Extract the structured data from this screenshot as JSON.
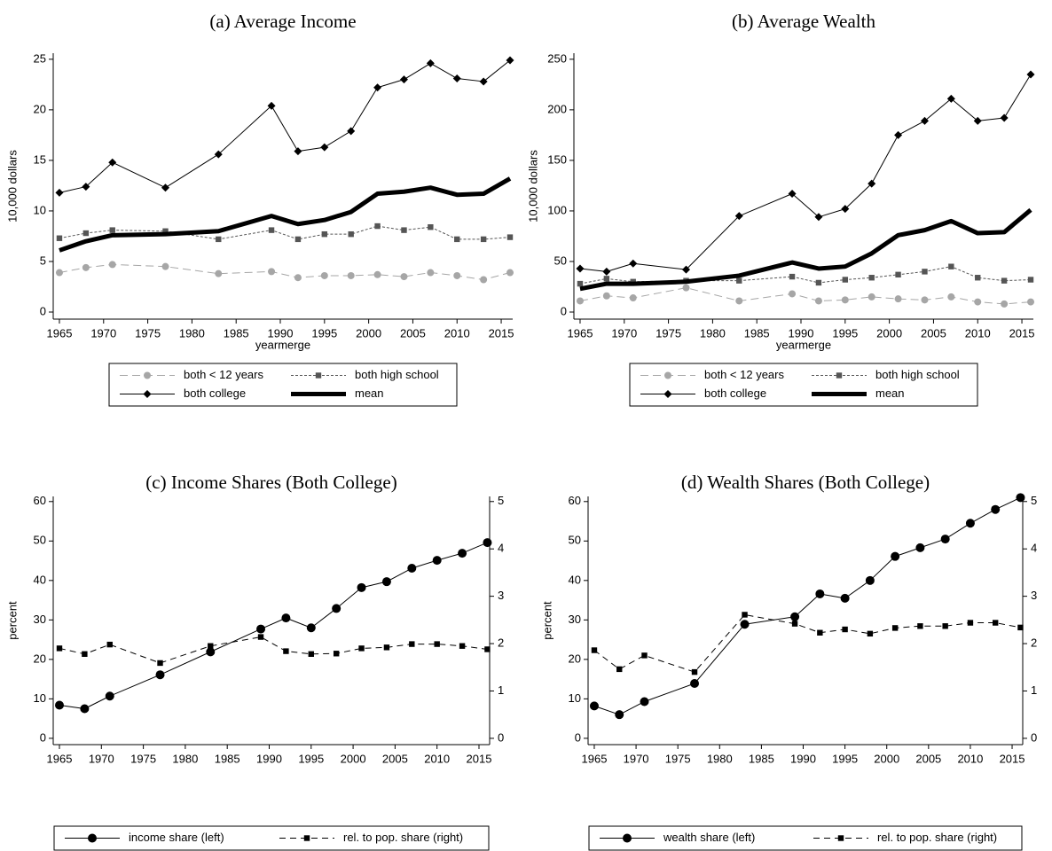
{
  "chart_data": [
    {
      "type": "line",
      "title": "(a) Average Income",
      "xlabel": "yearmerge",
      "ylabel": "10,000 dollars",
      "x": [
        1965,
        1968,
        1971,
        1977,
        1983,
        1989,
        1992,
        1995,
        1998,
        2001,
        2004,
        2007,
        2010,
        2013,
        2016
      ],
      "xlim": [
        1964.3,
        2016.3
      ],
      "xticks": [
        1965,
        1970,
        1975,
        1980,
        1985,
        1990,
        1995,
        2000,
        2005,
        2010,
        2015
      ],
      "ylim": [
        -0.7,
        25.6
      ],
      "yticks": [
        0,
        5,
        10,
        15,
        20,
        25
      ],
      "series": [
        {
          "name": "both < 12 years",
          "color": "#a6a6a6",
          "linestyle": "longdash",
          "marker": "circle",
          "linewidth": 1,
          "values": [
            3.9,
            4.4,
            4.7,
            4.5,
            3.8,
            4.0,
            3.4,
            3.6,
            3.6,
            3.7,
            3.5,
            3.9,
            3.6,
            3.2,
            3.9
          ]
        },
        {
          "name": "both high school",
          "color": "#555555",
          "linestyle": "shortdash",
          "marker": "square",
          "linewidth": 1,
          "values": [
            7.3,
            7.8,
            8.1,
            8.0,
            7.2,
            8.1,
            7.2,
            7.7,
            7.7,
            8.5,
            8.1,
            8.4,
            7.2,
            7.2,
            7.4
          ]
        },
        {
          "name": "both college",
          "color": "#000000",
          "linestyle": "solid",
          "marker": "diamond",
          "linewidth": 1,
          "values": [
            11.8,
            12.4,
            14.8,
            12.3,
            15.6,
            20.4,
            15.9,
            16.3,
            17.9,
            22.2,
            23.0,
            24.6,
            23.1,
            22.8,
            24.9
          ]
        },
        {
          "name": "mean",
          "color": "#000000",
          "linestyle": "solid",
          "marker": "none",
          "linewidth": 5,
          "values": [
            6.1,
            7.0,
            7.6,
            7.7,
            8.0,
            9.5,
            8.7,
            9.1,
            9.9,
            11.7,
            11.9,
            12.3,
            11.6,
            11.7,
            13.2
          ]
        }
      ]
    },
    {
      "type": "line",
      "title": "(b) Average Wealth",
      "xlabel": "yearmerge",
      "ylabel": "10,000 dollars",
      "x": [
        1965,
        1968,
        1971,
        1977,
        1983,
        1989,
        1992,
        1995,
        1998,
        2001,
        2004,
        2007,
        2010,
        2013,
        2016
      ],
      "xlim": [
        1964.3,
        2016.3
      ],
      "xticks": [
        1965,
        1970,
        1975,
        1980,
        1985,
        1990,
        1995,
        2000,
        2005,
        2010,
        2015
      ],
      "ylim": [
        -7,
        256
      ],
      "yticks": [
        0,
        50,
        100,
        150,
        200,
        250
      ],
      "series": [
        {
          "name": "both < 12 years",
          "color": "#a6a6a6",
          "linestyle": "longdash",
          "marker": "circle",
          "linewidth": 1,
          "values": [
            11,
            16,
            14,
            24,
            11,
            18,
            11,
            12,
            15,
            13,
            12,
            15,
            10,
            8,
            10
          ]
        },
        {
          "name": "both high school",
          "color": "#555555",
          "linestyle": "shortdash",
          "marker": "square",
          "linewidth": 1,
          "values": [
            28,
            33,
            30,
            31,
            31,
            35,
            29,
            32,
            34,
            37,
            40,
            45,
            34,
            31,
            32
          ]
        },
        {
          "name": "both college",
          "color": "#000000",
          "linestyle": "solid",
          "marker": "diamond",
          "linewidth": 1,
          "values": [
            43,
            40,
            48,
            42,
            95,
            117,
            94,
            102,
            127,
            175,
            189,
            211,
            189,
            192,
            235
          ]
        },
        {
          "name": "mean",
          "color": "#000000",
          "linestyle": "solid",
          "marker": "none",
          "linewidth": 5,
          "values": [
            23,
            28,
            28,
            30,
            36,
            49,
            43,
            45,
            58,
            76,
            81,
            90,
            78,
            79,
            101
          ]
        }
      ]
    },
    {
      "type": "line",
      "title": "(c) Income Shares (Both College)",
      "ylabel": "percent",
      "x": [
        1965,
        1968,
        1971,
        1977,
        1983,
        1989,
        1992,
        1995,
        1998,
        2001,
        2004,
        2007,
        2010,
        2013,
        2016
      ],
      "xlim": [
        1964.26,
        2016.27
      ],
      "xticks": [
        1965,
        1970,
        1975,
        1980,
        1985,
        1990,
        1995,
        2000,
        2005,
        2010,
        2015
      ],
      "ylim": [
        -1.6,
        61.3
      ],
      "yticks": [
        0,
        10,
        20,
        30,
        40,
        50,
        60
      ],
      "y2lim": [
        -0.133,
        5.108
      ],
      "y2ticks": [
        0,
        1,
        2,
        3,
        4,
        5
      ],
      "series": [
        {
          "name": "income share (left)",
          "color": "#000000",
          "linestyle": "solid",
          "marker": "circle",
          "linewidth": 1,
          "values": [
            8.4,
            7.5,
            10.7,
            16.1,
            21.9,
            27.7,
            30.5,
            28.0,
            32.9,
            38.2,
            39.7,
            43.1,
            45.1,
            46.9,
            49.6
          ]
        },
        {
          "name": "rel. to pop. share (right)",
          "color": "#000000",
          "linestyle": "dash",
          "marker": "square",
          "linewidth": 1,
          "axis": "y2",
          "values": [
            1.9,
            1.78,
            1.98,
            1.59,
            1.95,
            2.14,
            1.84,
            1.78,
            1.79,
            1.9,
            1.92,
            1.99,
            1.99,
            1.95,
            1.88
          ]
        }
      ]
    },
    {
      "type": "line",
      "title": "(d) Wealth Shares (Both College)",
      "ylabel": "percent",
      "x": [
        1965,
        1968,
        1971,
        1977,
        1983,
        1989,
        1992,
        1995,
        1998,
        2001,
        2004,
        2007,
        2010,
        2013,
        2016
      ],
      "xlim": [
        1964.26,
        2016.27
      ],
      "xticks": [
        1965,
        1970,
        1975,
        1980,
        1985,
        1990,
        1995,
        2000,
        2005,
        2010,
        2015
      ],
      "ylim": [
        -1.6,
        61.3
      ],
      "yticks": [
        0,
        10,
        20,
        30,
        40,
        50,
        60
      ],
      "y2lim": [
        -0.133,
        5.108
      ],
      "y2ticks": [
        0,
        1,
        2,
        3,
        4,
        5
      ],
      "series": [
        {
          "name": "wealth share (left)",
          "color": "#000000",
          "linestyle": "solid",
          "marker": "circle",
          "linewidth": 1,
          "values": [
            8.2,
            6.0,
            9.3,
            13.9,
            28.9,
            30.8,
            36.6,
            35.5,
            40.0,
            46.1,
            48.3,
            50.5,
            54.5,
            58.0,
            61.0
          ]
        },
        {
          "name": "rel. to pop. share (right)",
          "color": "#000000",
          "linestyle": "dash",
          "marker": "square",
          "linewidth": 1,
          "axis": "y2",
          "values": [
            1.86,
            1.46,
            1.75,
            1.4,
            2.61,
            2.42,
            2.23,
            2.3,
            2.21,
            2.33,
            2.37,
            2.37,
            2.44,
            2.44,
            2.34
          ]
        }
      ]
    }
  ]
}
